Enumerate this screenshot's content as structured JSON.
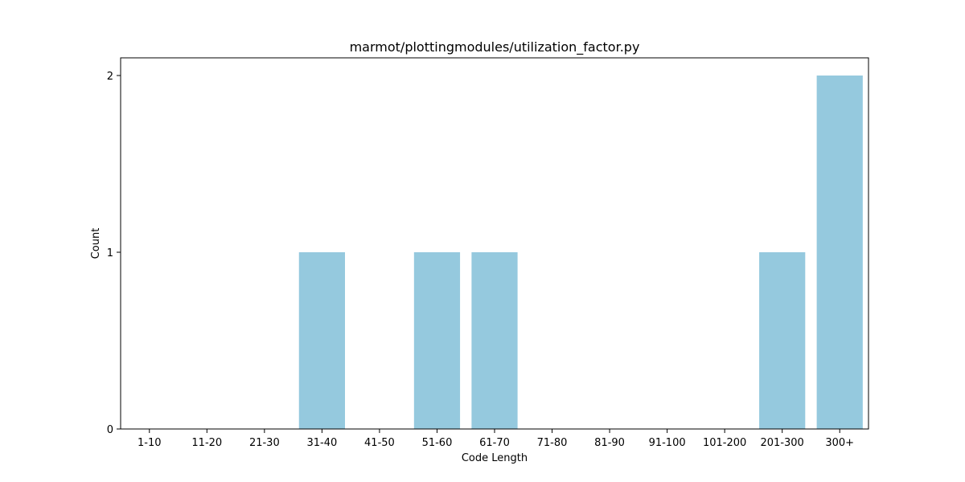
{
  "chart_data": {
    "type": "bar",
    "title": "marmot/plottingmodules/utilization_factor.py",
    "xlabel": "Code Length",
    "ylabel": "Count",
    "categories": [
      "1-10",
      "11-20",
      "21-30",
      "31-40",
      "41-50",
      "51-60",
      "61-70",
      "71-80",
      "81-90",
      "91-100",
      "101-200",
      "201-300",
      "300+"
    ],
    "values": [
      0,
      0,
      0,
      1,
      0,
      1,
      1,
      0,
      0,
      0,
      0,
      1,
      2
    ],
    "yticks": [
      0,
      1,
      2
    ],
    "ylim": [
      0,
      2.1
    ],
    "bar_color": "#95c9de",
    "grid": false,
    "legend": "none"
  }
}
